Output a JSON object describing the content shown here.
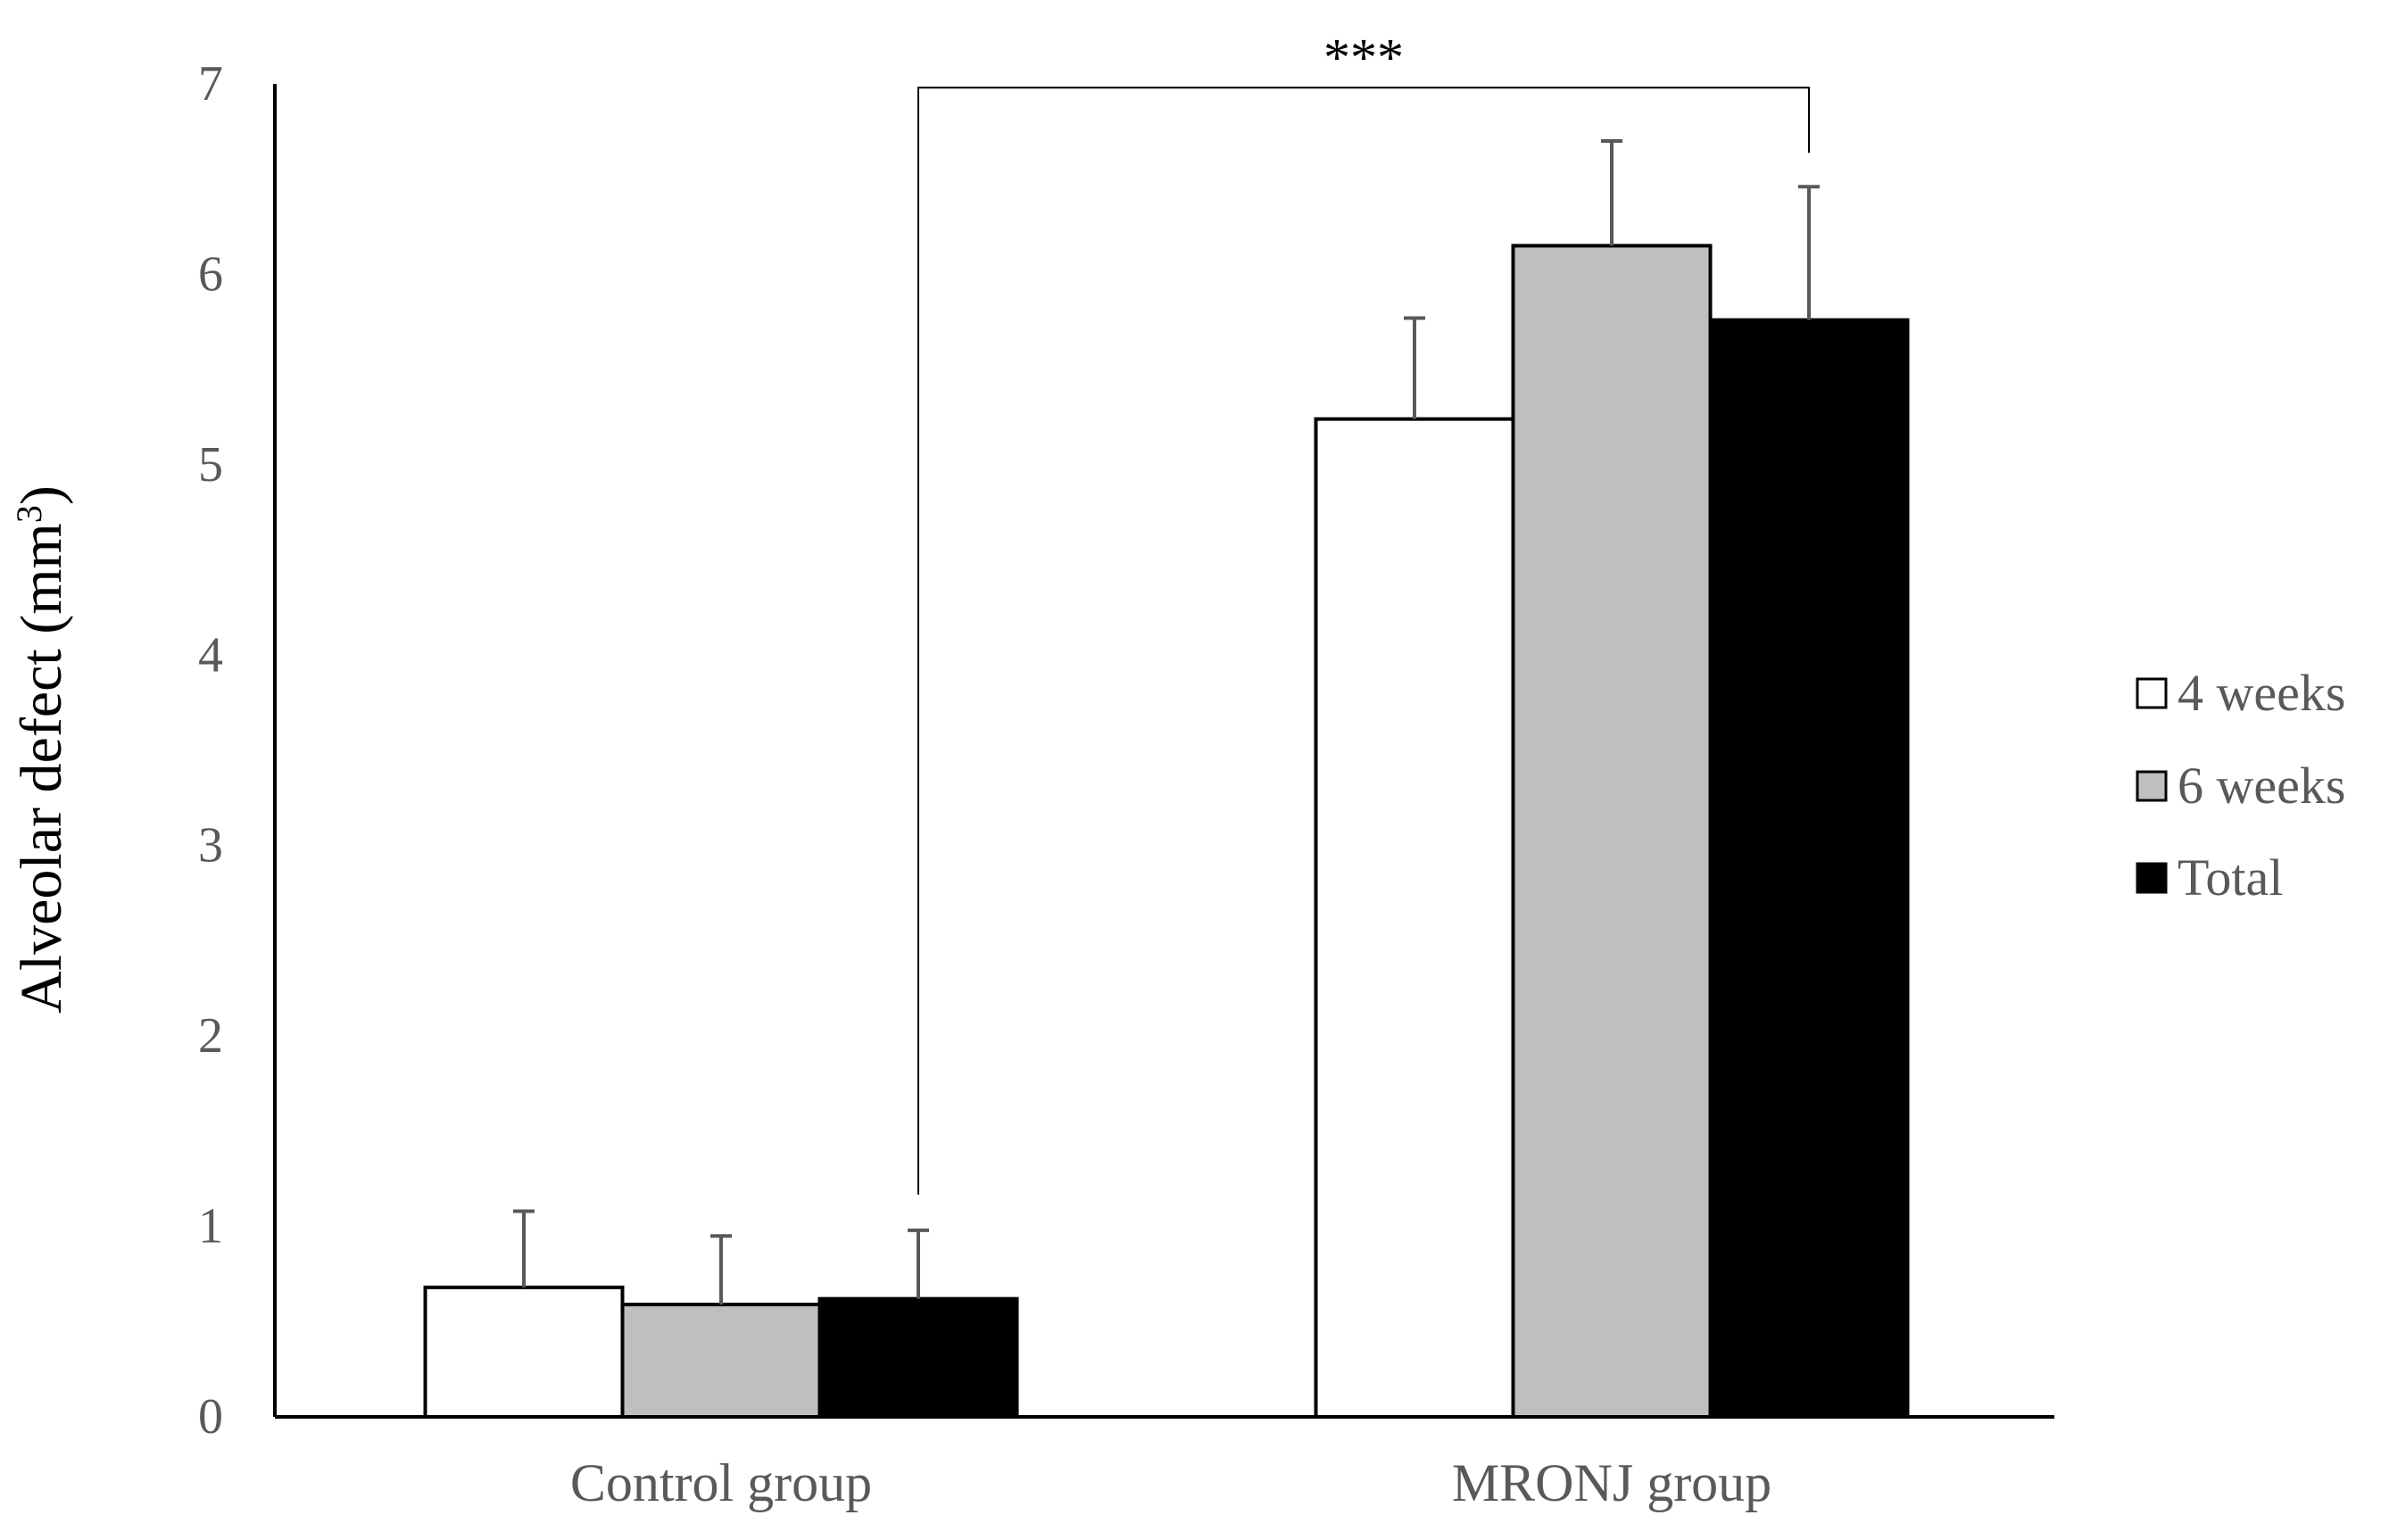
{
  "chart_data": {
    "type": "bar",
    "categories": [
      "Control group",
      "MRONJ group"
    ],
    "series": [
      {
        "name": "4 weeks",
        "color": "#ffffff",
        "values": [
          0.68,
          5.24
        ],
        "errors": [
          0.4,
          0.53
        ]
      },
      {
        "name": "6 weeks",
        "color": "#bfbfbf",
        "values": [
          0.59,
          6.15
        ],
        "errors": [
          0.36,
          0.55
        ]
      },
      {
        "name": "Total",
        "color": "#000000",
        "values": [
          0.62,
          5.76
        ],
        "errors": [
          0.36,
          0.7
        ]
      }
    ],
    "ylabel_main": "Alveolar defect (mm",
    "ylabel_sup": "3",
    "ylabel_close": ")",
    "xlabel": "",
    "ylim": [
      0,
      7
    ],
    "yticks": [
      "0",
      "1",
      "2",
      "3",
      "4",
      "5",
      "6",
      "7"
    ],
    "grid": false,
    "legend_position": "right",
    "significance": {
      "label": "***",
      "from": "Control group / Total",
      "to": "MRONJ group / Total"
    }
  }
}
